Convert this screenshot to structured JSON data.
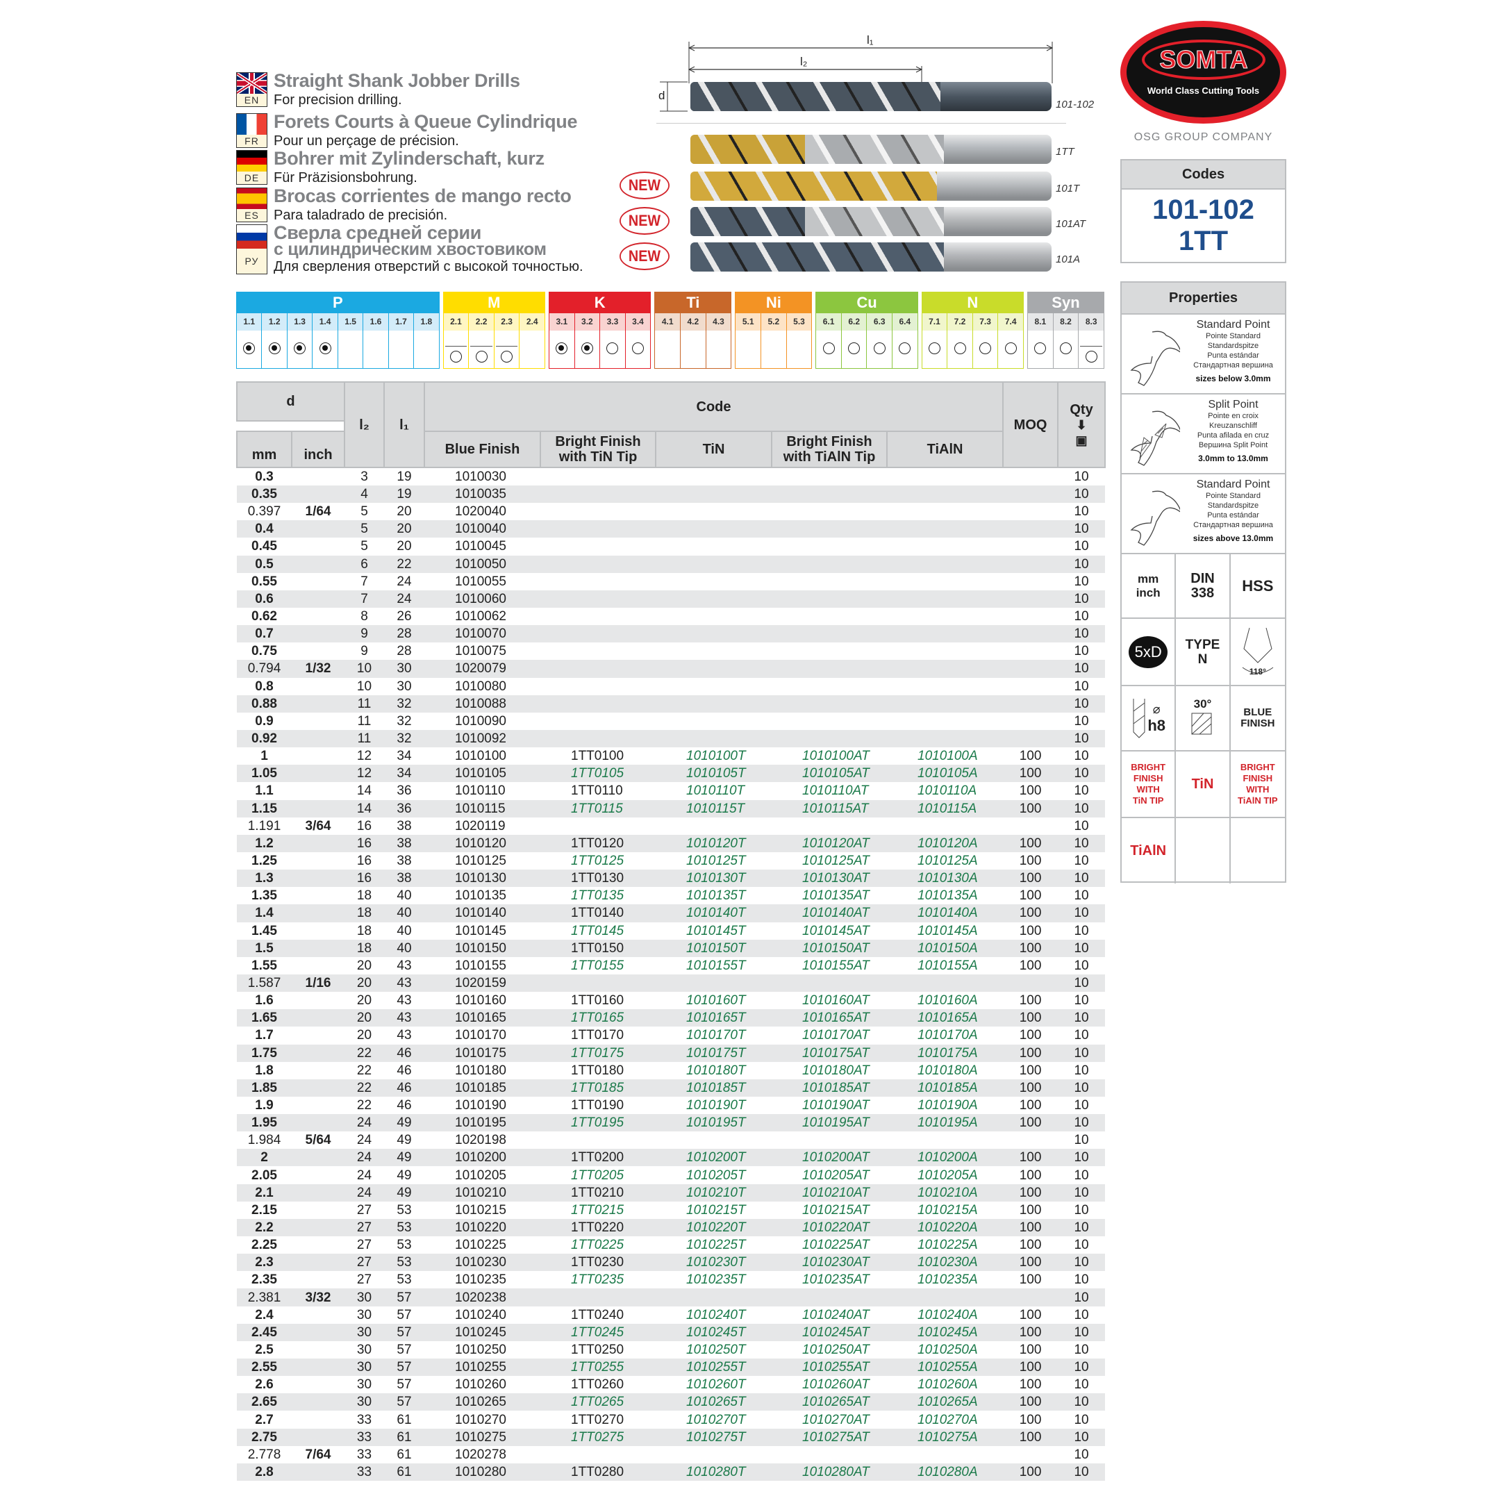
{
  "languages": [
    {
      "code": "EN",
      "title": "Straight Shank Jobber Drills",
      "subtitle": "For precision drilling."
    },
    {
      "code": "FR",
      "title": "Forets Courts à Queue Cylindrique",
      "subtitle": "Pour un perçage de précision."
    },
    {
      "code": "DE",
      "title": "Bohrer mit Zylinderschaft, kurz",
      "subtitle": "Für Präzisionsbohrung."
    },
    {
      "code": "ES",
      "title": "Brocas corrientes de mango recto",
      "subtitle": "Para taladrado de precisión."
    },
    {
      "code": "РУ",
      "title": "Сверла средней серии",
      "title2": "с цилиндрическим хвостовиком",
      "subtitle": "Для сверления отверстий с высокой точностью."
    }
  ],
  "diagram": {
    "l1": "l₁",
    "l2": "l₂",
    "d": "d"
  },
  "drills": [
    {
      "label": "101-102",
      "finish": "blue",
      "new": false
    },
    {
      "label": "1TT",
      "finish": "bright-tin-tip",
      "new": false
    },
    {
      "label": "101T",
      "finish": "tin",
      "new": true
    },
    {
      "label": "101AT",
      "finish": "bright-tialn-tip",
      "new": true
    },
    {
      "label": "101A",
      "finish": "tialn",
      "new": true
    }
  ],
  "new_badge": "NEW",
  "logo": {
    "name": "SOMTA",
    "tagline": "World Class Cutting Tools",
    "group": "OSG GROUP COMPANY"
  },
  "codes": {
    "header": "Codes",
    "line1": "101-102",
    "line2": "1TT",
    "color": "#1f4e8c"
  },
  "materials": [
    {
      "label": "P",
      "color": "#1ba9e1",
      "tint": "#d3ecf9",
      "subs": [
        [
          "1.1",
          "filled"
        ],
        [
          "1.2",
          "filled"
        ],
        [
          "1.3",
          "filled"
        ],
        [
          "1.4",
          "filled"
        ],
        [
          "1.5",
          ""
        ],
        [
          "1.6",
          ""
        ],
        [
          "1.7",
          ""
        ],
        [
          "1.8",
          ""
        ]
      ]
    },
    {
      "label": "M",
      "color": "#ffdd00",
      "tint": "#fff6c2",
      "subs": [
        [
          "2.1",
          "open-limited"
        ],
        [
          "2.2",
          "open-limited"
        ],
        [
          "2.3",
          "open-limited"
        ],
        [
          "2.4",
          ""
        ]
      ]
    },
    {
      "label": "K",
      "color": "#e3202a",
      "tint": "#f9d3d1",
      "subs": [
        [
          "3.1",
          "filled"
        ],
        [
          "3.2",
          "filled"
        ],
        [
          "3.3",
          "open"
        ],
        [
          "3.4",
          "open"
        ]
      ]
    },
    {
      "label": "Ti",
      "color": "#c8672a",
      "tint": "#f1dccd",
      "subs": [
        [
          "4.1",
          ""
        ],
        [
          "4.2",
          ""
        ],
        [
          "4.3",
          ""
        ]
      ]
    },
    {
      "label": "Ni",
      "color": "#f39324",
      "tint": "#fde3c6",
      "subs": [
        [
          "5.1",
          ""
        ],
        [
          "5.2",
          ""
        ],
        [
          "5.3",
          ""
        ]
      ]
    },
    {
      "label": "Cu",
      "color": "#8cc63f",
      "tint": "#e3f1d2",
      "subs": [
        [
          "6.1",
          "open"
        ],
        [
          "6.2",
          "open"
        ],
        [
          "6.3",
          "open"
        ],
        [
          "6.4",
          "open"
        ]
      ]
    },
    {
      "label": "N",
      "color": "#c9dc2a",
      "tint": "#f1f6cc",
      "subs": [
        [
          "7.1",
          "open"
        ],
        [
          "7.2",
          "open"
        ],
        [
          "7.3",
          "open"
        ],
        [
          "7.4",
          "open"
        ]
      ]
    },
    {
      "label": "Syn",
      "color": "#a7a9ac",
      "tint": "#e6e7e8",
      "subs": [
        [
          "8.1",
          "open"
        ],
        [
          "8.2",
          "open"
        ],
        [
          "8.3",
          "open-limited"
        ]
      ]
    }
  ],
  "table": {
    "headers": {
      "d": "d",
      "mm": "mm",
      "inch": "inch",
      "l2": "l₂",
      "l1": "l₁",
      "code": "Code",
      "blue": "Blue Finish",
      "bright_tin": "Bright Finish with TiN Tip",
      "tin": "TiN",
      "bright_tialn": "Bright Finish with TiAlN Tip",
      "tialn": "TiAlN",
      "moq": "MOQ",
      "qty": "Qty"
    },
    "rows": [
      [
        "0.3",
        "",
        "3",
        "19",
        "1010030",
        "",
        "",
        "",
        "",
        "",
        "10"
      ],
      [
        "0.35",
        "",
        "4",
        "19",
        "1010035",
        "",
        "",
        "",
        "",
        "",
        "10"
      ],
      [
        "0.397",
        "1/64",
        "5",
        "20",
        "1020040",
        "",
        "",
        "",
        "",
        "",
        "10"
      ],
      [
        "0.4",
        "",
        "5",
        "20",
        "1010040",
        "",
        "",
        "",
        "",
        "",
        "10"
      ],
      [
        "0.45",
        "",
        "5",
        "20",
        "1010045",
        "",
        "",
        "",
        "",
        "",
        "10"
      ],
      [
        "0.5",
        "",
        "6",
        "22",
        "1010050",
        "",
        "",
        "",
        "",
        "",
        "10"
      ],
      [
        "0.55",
        "",
        "7",
        "24",
        "1010055",
        "",
        "",
        "",
        "",
        "",
        "10"
      ],
      [
        "0.6",
        "",
        "7",
        "24",
        "1010060",
        "",
        "",
        "",
        "",
        "",
        "10"
      ],
      [
        "0.62",
        "",
        "8",
        "26",
        "1010062",
        "",
        "",
        "",
        "",
        "",
        "10"
      ],
      [
        "0.7",
        "",
        "9",
        "28",
        "1010070",
        "",
        "",
        "",
        "",
        "",
        "10"
      ],
      [
        "0.75",
        "",
        "9",
        "28",
        "1010075",
        "",
        "",
        "",
        "",
        "",
        "10"
      ],
      [
        "0.794",
        "1/32",
        "10",
        "30",
        "1020079",
        "",
        "",
        "",
        "",
        "",
        "10"
      ],
      [
        "0.8",
        "",
        "10",
        "30",
        "1010080",
        "",
        "",
        "",
        "",
        "",
        "10"
      ],
      [
        "0.88",
        "",
        "11",
        "32",
        "1010088",
        "",
        "",
        "",
        "",
        "",
        "10"
      ],
      [
        "0.9",
        "",
        "11",
        "32",
        "1010090",
        "",
        "",
        "",
        "",
        "",
        "10"
      ],
      [
        "0.92",
        "",
        "11",
        "32",
        "1010092",
        "",
        "",
        "",
        "",
        "",
        "10"
      ],
      [
        "1",
        "",
        "12",
        "34",
        "1010100",
        "1TT0100",
        "1010100T",
        "1010100AT",
        "1010100A",
        "100",
        "10"
      ],
      [
        "1.05",
        "",
        "12",
        "34",
        "1010105",
        "1TT0105",
        "1010105T",
        "1010105AT",
        "1010105A",
        "100",
        "10"
      ],
      [
        "1.1",
        "",
        "14",
        "36",
        "1010110",
        "1TT0110",
        "1010110T",
        "1010110AT",
        "1010110A",
        "100",
        "10"
      ],
      [
        "1.15",
        "",
        "14",
        "36",
        "1010115",
        "1TT0115",
        "1010115T",
        "1010115AT",
        "1010115A",
        "100",
        "10"
      ],
      [
        "1.191",
        "3/64",
        "16",
        "38",
        "1020119",
        "",
        "",
        "",
        "",
        "",
        "10"
      ],
      [
        "1.2",
        "",
        "16",
        "38",
        "1010120",
        "1TT0120",
        "1010120T",
        "1010120AT",
        "1010120A",
        "100",
        "10"
      ],
      [
        "1.25",
        "",
        "16",
        "38",
        "1010125",
        "1TT0125",
        "1010125T",
        "1010125AT",
        "1010125A",
        "100",
        "10"
      ],
      [
        "1.3",
        "",
        "16",
        "38",
        "1010130",
        "1TT0130",
        "1010130T",
        "1010130AT",
        "1010130A",
        "100",
        "10"
      ],
      [
        "1.35",
        "",
        "18",
        "40",
        "1010135",
        "1TT0135",
        "1010135T",
        "1010135AT",
        "1010135A",
        "100",
        "10"
      ],
      [
        "1.4",
        "",
        "18",
        "40",
        "1010140",
        "1TT0140",
        "1010140T",
        "1010140AT",
        "1010140A",
        "100",
        "10"
      ],
      [
        "1.45",
        "",
        "18",
        "40",
        "1010145",
        "1TT0145",
        "1010145T",
        "1010145AT",
        "1010145A",
        "100",
        "10"
      ],
      [
        "1.5",
        "",
        "18",
        "40",
        "1010150",
        "1TT0150",
        "1010150T",
        "1010150AT",
        "1010150A",
        "100",
        "10"
      ],
      [
        "1.55",
        "",
        "20",
        "43",
        "1010155",
        "1TT0155",
        "1010155T",
        "1010155AT",
        "1010155A",
        "100",
        "10"
      ],
      [
        "1.587",
        "1/16",
        "20",
        "43",
        "1020159",
        "",
        "",
        "",
        "",
        "",
        "10"
      ],
      [
        "1.6",
        "",
        "20",
        "43",
        "1010160",
        "1TT0160",
        "1010160T",
        "1010160AT",
        "1010160A",
        "100",
        "10"
      ],
      [
        "1.65",
        "",
        "20",
        "43",
        "1010165",
        "1TT0165",
        "1010165T",
        "1010165AT",
        "1010165A",
        "100",
        "10"
      ],
      [
        "1.7",
        "",
        "20",
        "43",
        "1010170",
        "1TT0170",
        "1010170T",
        "1010170AT",
        "1010170A",
        "100",
        "10"
      ],
      [
        "1.75",
        "",
        "22",
        "46",
        "1010175",
        "1TT0175",
        "1010175T",
        "1010175AT",
        "1010175A",
        "100",
        "10"
      ],
      [
        "1.8",
        "",
        "22",
        "46",
        "1010180",
        "1TT0180",
        "1010180T",
        "1010180AT",
        "1010180A",
        "100",
        "10"
      ],
      [
        "1.85",
        "",
        "22",
        "46",
        "1010185",
        "1TT0185",
        "1010185T",
        "1010185AT",
        "1010185A",
        "100",
        "10"
      ],
      [
        "1.9",
        "",
        "22",
        "46",
        "1010190",
        "1TT0190",
        "1010190T",
        "1010190AT",
        "1010190A",
        "100",
        "10"
      ],
      [
        "1.95",
        "",
        "24",
        "49",
        "1010195",
        "1TT0195",
        "1010195T",
        "1010195AT",
        "1010195A",
        "100",
        "10"
      ],
      [
        "1.984",
        "5/64",
        "24",
        "49",
        "1020198",
        "",
        "",
        "",
        "",
        "",
        "10"
      ],
      [
        "2",
        "",
        "24",
        "49",
        "1010200",
        "1TT0200",
        "1010200T",
        "1010200AT",
        "1010200A",
        "100",
        "10"
      ],
      [
        "2.05",
        "",
        "24",
        "49",
        "1010205",
        "1TT0205",
        "1010205T",
        "1010205AT",
        "1010205A",
        "100",
        "10"
      ],
      [
        "2.1",
        "",
        "24",
        "49",
        "1010210",
        "1TT0210",
        "1010210T",
        "1010210AT",
        "1010210A",
        "100",
        "10"
      ],
      [
        "2.15",
        "",
        "27",
        "53",
        "1010215",
        "1TT0215",
        "1010215T",
        "1010215AT",
        "1010215A",
        "100",
        "10"
      ],
      [
        "2.2",
        "",
        "27",
        "53",
        "1010220",
        "1TT0220",
        "1010220T",
        "1010220AT",
        "1010220A",
        "100",
        "10"
      ],
      [
        "2.25",
        "",
        "27",
        "53",
        "1010225",
        "1TT0225",
        "1010225T",
        "1010225AT",
        "1010225A",
        "100",
        "10"
      ],
      [
        "2.3",
        "",
        "27",
        "53",
        "1010230",
        "1TT0230",
        "1010230T",
        "1010230AT",
        "1010230A",
        "100",
        "10"
      ],
      [
        "2.35",
        "",
        "27",
        "53",
        "1010235",
        "1TT0235",
        "1010235T",
        "1010235AT",
        "1010235A",
        "100",
        "10"
      ],
      [
        "2.381",
        "3/32",
        "30",
        "57",
        "1020238",
        "",
        "",
        "",
        "",
        "",
        "10"
      ],
      [
        "2.4",
        "",
        "30",
        "57",
        "1010240",
        "1TT0240",
        "1010240T",
        "1010240AT",
        "1010240A",
        "100",
        "10"
      ],
      [
        "2.45",
        "",
        "30",
        "57",
        "1010245",
        "1TT0245",
        "1010245T",
        "1010245AT",
        "1010245A",
        "100",
        "10"
      ],
      [
        "2.5",
        "",
        "30",
        "57",
        "1010250",
        "1TT0250",
        "1010250T",
        "1010250AT",
        "1010250A",
        "100",
        "10"
      ],
      [
        "2.55",
        "",
        "30",
        "57",
        "1010255",
        "1TT0255",
        "1010255T",
        "1010255AT",
        "1010255A",
        "100",
        "10"
      ],
      [
        "2.6",
        "",
        "30",
        "57",
        "1010260",
        "1TT0260",
        "1010260T",
        "1010260AT",
        "1010260A",
        "100",
        "10"
      ],
      [
        "2.65",
        "",
        "30",
        "57",
        "1010265",
        "1TT0265",
        "1010265T",
        "1010265AT",
        "1010265A",
        "100",
        "10"
      ],
      [
        "2.7",
        "",
        "33",
        "61",
        "1010270",
        "1TT0270",
        "1010270T",
        "1010270AT",
        "1010270A",
        "100",
        "10"
      ],
      [
        "2.75",
        "",
        "33",
        "61",
        "1010275",
        "1TT0275",
        "1010275T",
        "1010275AT",
        "1010275A",
        "100",
        "10"
      ],
      [
        "2.778",
        "7/64",
        "33",
        "61",
        "1020278",
        "",
        "",
        "",
        "",
        "",
        "10"
      ],
      [
        "2.8",
        "",
        "33",
        "61",
        "1010280",
        "1TT0280",
        "1010280T",
        "1010280AT",
        "1010280A",
        "100",
        "10"
      ]
    ]
  },
  "properties": {
    "header": "Properties",
    "points": [
      {
        "title": "Standard Point",
        "lines": [
          "Pointe Standard",
          "Standardspitze",
          "Punta estándar",
          "Стандартная вершина"
        ],
        "range": "sizes below 3.0mm",
        "split": false
      },
      {
        "title": "Split Point",
        "lines": [
          "Pointe en croix",
          "Kreuzanschliff",
          "Punta afilada en cruz",
          "Вершина Split Point"
        ],
        "range": "3.0mm to 13.0mm",
        "split": true
      },
      {
        "title": "Standard Point",
        "lines": [
          "Pointe Standard",
          "Standardspitze",
          "Punta estándar",
          "Стандартная вершина"
        ],
        "range": "sizes above 13.0mm",
        "split": false
      }
    ],
    "units": [
      "mm",
      "inch"
    ],
    "standard": [
      "DIN",
      "338"
    ],
    "material": "HSS",
    "depth": "5xD",
    "type": [
      "TYPE",
      "N"
    ],
    "point_angle": "118°",
    "tolerance": "h8",
    "helix": "30°",
    "blue_finish": [
      "BLUE",
      "FINISH"
    ],
    "bright_tin": [
      "BRIGHT",
      "FINISH",
      "WITH",
      "TiN TIP"
    ],
    "tin": "TiN",
    "bright_tialn": [
      "BRIGHT",
      "FINISH",
      "WITH",
      "TiAlN TIP"
    ],
    "tialn": "TiAlN",
    "accent_red": "#d2232a"
  }
}
